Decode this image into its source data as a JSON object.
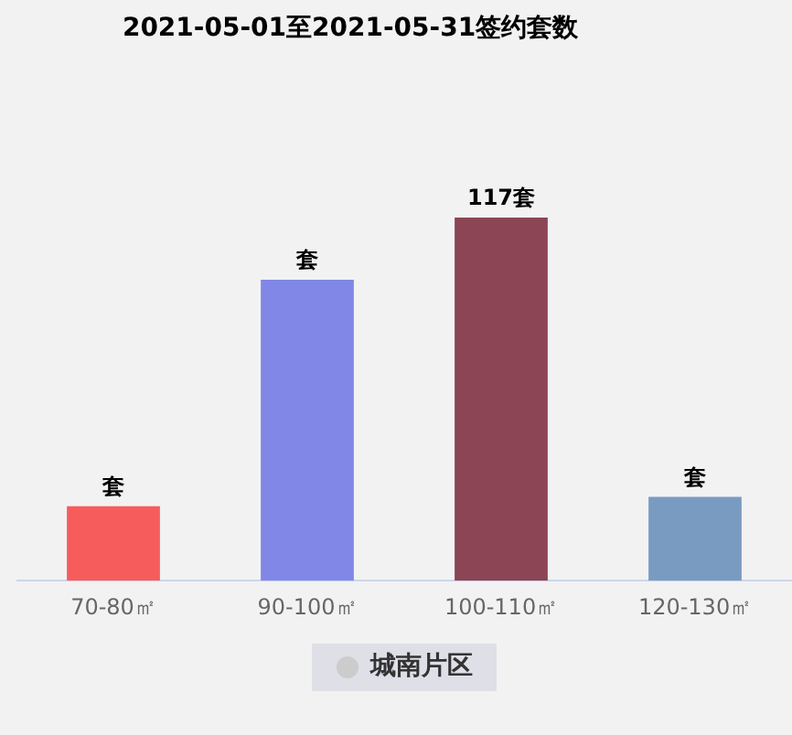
{
  "chart_data": {
    "type": "bar",
    "title": "2021-05-01至2021-05-31签约套数",
    "categories": [
      "70-80㎡",
      "90-100㎡",
      "100-110㎡",
      "120-130㎡"
    ],
    "series": [
      {
        "name": "城南片区",
        "colors": [
          "#f75c5c",
          "#8087e7",
          "#8b4555",
          "#7a9bc1"
        ],
        "values": [
          24,
          97,
          117,
          27
        ],
        "value_labels": [
          "套",
          "套",
          "117套",
          "套"
        ]
      }
    ],
    "legend": "bottom",
    "grid": false
  }
}
